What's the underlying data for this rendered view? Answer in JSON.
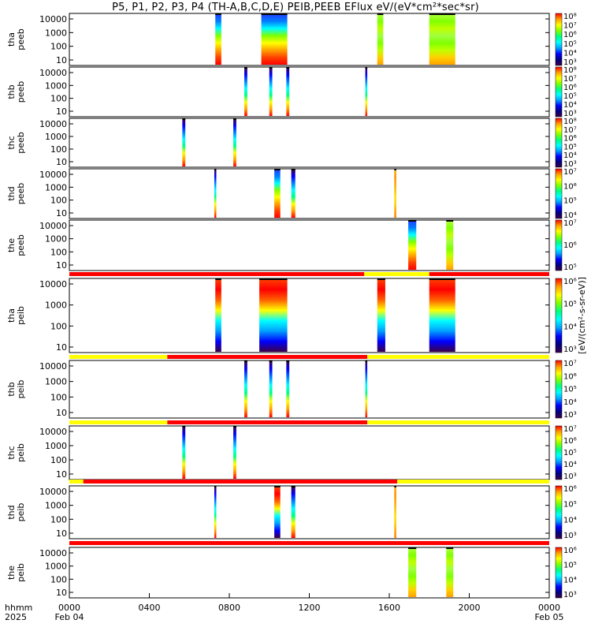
{
  "title": "P5, P1, P2, P3, P4 (TH-A,B,C,D,E) PEIB,PEEB EFlux eV/(eV*cm²*sec*sr)",
  "colorbar_label": "[eV/(cm²-s-sr-eV)]",
  "colors": {
    "flag_red": "#ff0000",
    "flag_yellow": "#ffff00",
    "colormap": [
      "#3c0048",
      "#000080",
      "#0000ff",
      "#00a0ff",
      "#00ffff",
      "#00ff80",
      "#80ff00",
      "#ffff00",
      "#ffa000",
      "#ff0000"
    ]
  },
  "x_axis": {
    "row_label_1": "hhmm",
    "row_label_2": "2025",
    "ticks": [
      "0000",
      "0400",
      "0800",
      "1200",
      "1600",
      "2000",
      "0000"
    ],
    "date_labels": [
      "Feb 04",
      "Feb 05"
    ],
    "range_hours": [
      0,
      24
    ]
  },
  "chart_data": [
    {
      "type": "heatmap",
      "probe": "tha",
      "species": "peeb",
      "ylabel": [
        "tha",
        "peeb"
      ],
      "y_ticks": [
        "10000",
        "1000",
        "100",
        "10"
      ],
      "colorbar_ticks": [
        "10⁸",
        "10⁷",
        "10⁶",
        "10⁵",
        "10⁴",
        "10³"
      ],
      "intervals": [
        {
          "start_h": 7.3,
          "end_h": 7.6,
          "profile": "electron"
        },
        {
          "start_h": 9.6,
          "end_h": 10.9,
          "profile": "electron"
        },
        {
          "start_h": 15.4,
          "end_h": 15.7,
          "profile": "green"
        },
        {
          "start_h": 18.0,
          "end_h": 19.3,
          "profile": "green"
        }
      ]
    },
    {
      "type": "heatmap",
      "probe": "thb",
      "species": "peeb",
      "ylabel": [
        "thb",
        "peeb"
      ],
      "y_ticks": [
        "10000",
        "1000",
        "100",
        "10"
      ],
      "colorbar_ticks": [
        "10⁸",
        "10⁷",
        "10⁶",
        "10⁵",
        "10⁴",
        "10³"
      ],
      "intervals": [
        {
          "start_h": 8.75,
          "end_h": 8.9,
          "profile": "narrow"
        },
        {
          "start_h": 10.0,
          "end_h": 10.15,
          "profile": "narrow"
        },
        {
          "start_h": 10.85,
          "end_h": 11.0,
          "profile": "narrow"
        },
        {
          "start_h": 14.8,
          "end_h": 14.9,
          "profile": "narrow"
        }
      ]
    },
    {
      "type": "heatmap",
      "probe": "thc",
      "species": "peeb",
      "ylabel": [
        "thc",
        "peeb"
      ],
      "y_ticks": [
        "10000",
        "1000",
        "100",
        "10"
      ],
      "colorbar_ticks": [
        "10⁸",
        "10⁷",
        "10⁶",
        "10⁵",
        "10⁴",
        "10³"
      ],
      "intervals": [
        {
          "start_h": 5.65,
          "end_h": 5.8,
          "profile": "narrow"
        },
        {
          "start_h": 8.2,
          "end_h": 8.35,
          "profile": "narrow"
        }
      ]
    },
    {
      "type": "heatmap",
      "probe": "thd",
      "species": "peeb",
      "ylabel": [
        "thd",
        "peeb"
      ],
      "y_ticks": [
        "10000",
        "1000",
        "100",
        "10"
      ],
      "colorbar_ticks": [
        "10⁷",
        "10⁶",
        "10⁵",
        "10⁴"
      ],
      "intervals": [
        {
          "start_h": 7.25,
          "end_h": 7.35,
          "profile": "narrow"
        },
        {
          "start_h": 10.25,
          "end_h": 10.55,
          "profile": "electron"
        },
        {
          "start_h": 11.1,
          "end_h": 11.3,
          "profile": "narrow"
        },
        {
          "start_h": 16.25,
          "end_h": 16.35,
          "profile": "orange"
        }
      ]
    },
    {
      "type": "heatmap",
      "probe": "the",
      "species": "peeb",
      "ylabel": [
        "the",
        "peeb"
      ],
      "y_ticks": [
        "10000",
        "1000",
        "100",
        "10"
      ],
      "colorbar_ticks": [
        "10⁷",
        "10⁶",
        "10⁵"
      ],
      "intervals": [
        {
          "start_h": 16.95,
          "end_h": 17.35,
          "profile": "electron"
        },
        {
          "start_h": 18.85,
          "end_h": 19.2,
          "profile": "green"
        }
      ]
    },
    {
      "type": "heatmap",
      "probe": "tha",
      "species": "peib",
      "ylabel": [
        "tha",
        "peib"
      ],
      "y_ticks": [
        "10000",
        "1000",
        "100",
        "10"
      ],
      "colorbar_ticks": [
        "10⁶",
        "10⁵",
        "10⁴",
        "10³"
      ],
      "flag_bar": [
        [
          0,
          14.75,
          "red"
        ],
        [
          14.75,
          18.0,
          "yellow"
        ],
        [
          18.0,
          24,
          "red"
        ]
      ],
      "intervals": [
        {
          "start_h": 7.3,
          "end_h": 7.6,
          "profile": "ion"
        },
        {
          "start_h": 9.5,
          "end_h": 10.9,
          "profile": "ion"
        },
        {
          "start_h": 15.4,
          "end_h": 15.8,
          "profile": "ion"
        },
        {
          "start_h": 18.0,
          "end_h": 19.3,
          "profile": "ion"
        }
      ]
    },
    {
      "type": "heatmap",
      "probe": "thb",
      "species": "peib",
      "ylabel": [
        "thb",
        "peib"
      ],
      "y_ticks": [
        "10000",
        "1000",
        "100",
        "10"
      ],
      "colorbar_ticks": [
        "10⁷",
        "10⁶",
        "10⁵",
        "10⁴",
        "10³"
      ],
      "flag_bar": [
        [
          0,
          4.9,
          "yellow"
        ],
        [
          4.9,
          14.9,
          "red"
        ],
        [
          14.9,
          24,
          "yellow"
        ]
      ],
      "intervals": [
        {
          "start_h": 8.75,
          "end_h": 8.9,
          "profile": "narrow"
        },
        {
          "start_h": 10.0,
          "end_h": 10.15,
          "profile": "narrow"
        },
        {
          "start_h": 10.85,
          "end_h": 11.0,
          "profile": "narrow"
        },
        {
          "start_h": 14.8,
          "end_h": 14.9,
          "profile": "narrow"
        }
      ]
    },
    {
      "type": "heatmap",
      "probe": "thc",
      "species": "peib",
      "ylabel": [
        "thc",
        "peib"
      ],
      "y_ticks": [
        "10000",
        "1000",
        "100",
        "10"
      ],
      "colorbar_ticks": [
        "10⁷",
        "10⁶",
        "10⁵",
        "10⁴",
        "10³"
      ],
      "flag_bar": [
        [
          0,
          4.9,
          "yellow"
        ],
        [
          4.9,
          14.9,
          "red"
        ],
        [
          14.9,
          24,
          "yellow"
        ]
      ],
      "intervals": [
        {
          "start_h": 5.65,
          "end_h": 5.8,
          "profile": "narrow"
        },
        {
          "start_h": 8.2,
          "end_h": 8.35,
          "profile": "narrow"
        }
      ]
    },
    {
      "type": "heatmap",
      "probe": "thd",
      "species": "peib",
      "ylabel": [
        "thd",
        "peib"
      ],
      "y_ticks": [
        "10000",
        "1000",
        "100",
        "10"
      ],
      "colorbar_ticks": [
        "10⁶",
        "10⁵",
        "10⁴",
        "10³"
      ],
      "flag_bar": [
        [
          0,
          0.7,
          "yellow"
        ],
        [
          0.7,
          16.4,
          "red"
        ],
        [
          16.4,
          24,
          "yellow"
        ]
      ],
      "intervals": [
        {
          "start_h": 7.25,
          "end_h": 7.35,
          "profile": "narrow"
        },
        {
          "start_h": 10.25,
          "end_h": 10.55,
          "profile": "ion"
        },
        {
          "start_h": 11.1,
          "end_h": 11.3,
          "profile": "narrow"
        },
        {
          "start_h": 16.25,
          "end_h": 16.35,
          "profile": "orange"
        }
      ]
    },
    {
      "type": "heatmap",
      "probe": "the",
      "species": "peib",
      "ylabel": [
        "the",
        "peib"
      ],
      "y_ticks": [
        "10000",
        "1000",
        "100",
        "10"
      ],
      "colorbar_ticks": [
        "10⁶",
        "10⁵",
        "10⁴",
        "10³"
      ],
      "flag_bar": [
        [
          0,
          24,
          "red"
        ]
      ],
      "intervals": [
        {
          "start_h": 16.95,
          "end_h": 17.35,
          "profile": "green"
        },
        {
          "start_h": 18.85,
          "end_h": 19.2,
          "profile": "green"
        }
      ]
    }
  ]
}
